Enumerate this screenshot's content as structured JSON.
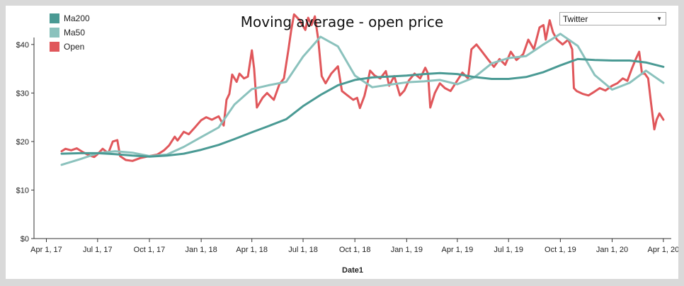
{
  "chart_data": {
    "type": "line",
    "title": "Moving average - open price",
    "xlabel": "Date1",
    "ylabel": "",
    "ylim": [
      0,
      48
    ],
    "xlim": [
      "2017-03-10",
      "2020-04-15"
    ],
    "grid": false,
    "legend_position": "top-left",
    "y_ticks": [
      "$0",
      "$10",
      "$20",
      "$30",
      "$40"
    ],
    "x_ticks": [
      "Apr 1, 17",
      "Jul 1, 17",
      "Oct 1, 17",
      "Jan 1, 18",
      "Apr 1, 18",
      "Jul 1, 18",
      "Oct 1, 18",
      "Jan 1, 19",
      "Apr 1, 19",
      "Jul 1, 19",
      "Oct 1, 19",
      "Jan 1, 20",
      "Apr 1, 20"
    ],
    "series": [
      {
        "name": "Ma200",
        "color": "#4a9a94",
        "points": [
          [
            "2017-04-28",
            17.5
          ],
          [
            "2017-06-01",
            17.6
          ],
          [
            "2017-07-01",
            17.6
          ],
          [
            "2017-08-01",
            17.4
          ],
          [
            "2017-09-01",
            17.1
          ],
          [
            "2017-10-01",
            16.9
          ],
          [
            "2017-11-01",
            17.1
          ],
          [
            "2017-12-01",
            17.5
          ],
          [
            "2018-01-01",
            18.3
          ],
          [
            "2018-02-01",
            19.3
          ],
          [
            "2018-03-01",
            20.5
          ],
          [
            "2018-04-01",
            21.9
          ],
          [
            "2018-05-01",
            23.2
          ],
          [
            "2018-06-01",
            24.6
          ],
          [
            "2018-07-01",
            27.3
          ],
          [
            "2018-08-01",
            29.6
          ],
          [
            "2018-09-01",
            31.6
          ],
          [
            "2018-10-01",
            32.7
          ],
          [
            "2018-11-01",
            33.2
          ],
          [
            "2018-12-01",
            33.4
          ],
          [
            "2019-01-01",
            33.6
          ],
          [
            "2019-02-01",
            33.9
          ],
          [
            "2019-03-01",
            34.1
          ],
          [
            "2019-04-01",
            33.9
          ],
          [
            "2019-05-01",
            33.3
          ],
          [
            "2019-06-01",
            32.9
          ],
          [
            "2019-07-01",
            32.9
          ],
          [
            "2019-08-01",
            33.3
          ],
          [
            "2019-09-01",
            34.3
          ],
          [
            "2019-10-01",
            35.7
          ],
          [
            "2019-11-01",
            37.0
          ],
          [
            "2019-12-01",
            36.8
          ],
          [
            "2020-01-01",
            36.7
          ],
          [
            "2020-02-01",
            36.7
          ],
          [
            "2020-03-01",
            36.3
          ],
          [
            "2020-04-01",
            35.4
          ]
        ]
      },
      {
        "name": "Ma50",
        "color": "#8bc2bd",
        "points": [
          [
            "2017-04-28",
            15.2
          ],
          [
            "2017-06-01",
            16.4
          ],
          [
            "2017-07-01",
            17.6
          ],
          [
            "2017-08-01",
            18.0
          ],
          [
            "2017-09-01",
            17.7
          ],
          [
            "2017-10-01",
            17.0
          ],
          [
            "2017-11-01",
            17.3
          ],
          [
            "2017-12-01",
            18.9
          ],
          [
            "2018-01-01",
            20.9
          ],
          [
            "2018-02-01",
            22.9
          ],
          [
            "2018-03-01",
            27.6
          ],
          [
            "2018-04-01",
            30.8
          ],
          [
            "2018-05-01",
            31.6
          ],
          [
            "2018-06-01",
            32.3
          ],
          [
            "2018-07-01",
            37.5
          ],
          [
            "2018-08-01",
            41.6
          ],
          [
            "2018-09-01",
            39.6
          ],
          [
            "2018-10-01",
            33.6
          ],
          [
            "2018-11-01",
            31.2
          ],
          [
            "2018-12-01",
            31.7
          ],
          [
            "2019-01-01",
            32.2
          ],
          [
            "2019-02-01",
            32.4
          ],
          [
            "2019-03-01",
            32.7
          ],
          [
            "2019-04-01",
            31.8
          ],
          [
            "2019-05-01",
            33.2
          ],
          [
            "2019-06-01",
            36.1
          ],
          [
            "2019-07-01",
            37.2
          ],
          [
            "2019-08-01",
            37.6
          ],
          [
            "2019-09-01",
            40.0
          ],
          [
            "2019-10-01",
            42.2
          ],
          [
            "2019-11-01",
            39.7
          ],
          [
            "2019-12-01",
            33.7
          ],
          [
            "2020-01-01",
            30.7
          ],
          [
            "2020-02-01",
            32.1
          ],
          [
            "2020-03-01",
            34.6
          ],
          [
            "2020-04-01",
            32.1
          ]
        ]
      },
      {
        "name": "Open",
        "color": "#e0575b",
        "points": [
          [
            "2017-04-28",
            18.0
          ],
          [
            "2017-05-05",
            18.5
          ],
          [
            "2017-05-15",
            18.2
          ],
          [
            "2017-05-25",
            18.6
          ],
          [
            "2017-06-05",
            17.8
          ],
          [
            "2017-06-15",
            17.2
          ],
          [
            "2017-06-25",
            16.8
          ],
          [
            "2017-07-01",
            17.4
          ],
          [
            "2017-07-10",
            18.5
          ],
          [
            "2017-07-20",
            17.6
          ],
          [
            "2017-07-28",
            20.0
          ],
          [
            "2017-08-05",
            20.3
          ],
          [
            "2017-08-10",
            17.0
          ],
          [
            "2017-08-20",
            16.2
          ],
          [
            "2017-09-01",
            16.0
          ],
          [
            "2017-09-15",
            16.6
          ],
          [
            "2017-10-01",
            17.0
          ],
          [
            "2017-10-15",
            17.3
          ],
          [
            "2017-10-27",
            18.2
          ],
          [
            "2017-11-05",
            19.2
          ],
          [
            "2017-11-15",
            21.0
          ],
          [
            "2017-11-20",
            20.2
          ],
          [
            "2017-12-01",
            22.0
          ],
          [
            "2017-12-10",
            21.5
          ],
          [
            "2017-12-20",
            22.8
          ],
          [
            "2018-01-01",
            24.4
          ],
          [
            "2018-01-10",
            25.0
          ],
          [
            "2018-01-20",
            24.5
          ],
          [
            "2018-02-01",
            25.2
          ],
          [
            "2018-02-10",
            23.3
          ],
          [
            "2018-02-15",
            28.6
          ],
          [
            "2018-02-20",
            29.8
          ],
          [
            "2018-02-25",
            33.8
          ],
          [
            "2018-03-05",
            32.3
          ],
          [
            "2018-03-10",
            34.0
          ],
          [
            "2018-03-18",
            33.0
          ],
          [
            "2018-03-25",
            33.4
          ],
          [
            "2018-04-01",
            38.8
          ],
          [
            "2018-04-05",
            35.0
          ],
          [
            "2018-04-10",
            27.0
          ],
          [
            "2018-04-20",
            29.0
          ],
          [
            "2018-04-28",
            30.0
          ],
          [
            "2018-05-10",
            28.6
          ],
          [
            "2018-05-20",
            31.8
          ],
          [
            "2018-05-28",
            33.0
          ],
          [
            "2018-06-05",
            39.0
          ],
          [
            "2018-06-10",
            43.0
          ],
          [
            "2018-06-15",
            46.2
          ],
          [
            "2018-06-25",
            45.0
          ],
          [
            "2018-07-05",
            43.0
          ],
          [
            "2018-07-10",
            45.5
          ],
          [
            "2018-07-16",
            44.0
          ],
          [
            "2018-07-22",
            45.8
          ],
          [
            "2018-07-28",
            41.0
          ],
          [
            "2018-08-03",
            33.5
          ],
          [
            "2018-08-10",
            32.0
          ],
          [
            "2018-08-20",
            34.0
          ],
          [
            "2018-09-01",
            35.5
          ],
          [
            "2018-09-08",
            30.4
          ],
          [
            "2018-09-18",
            29.5
          ],
          [
            "2018-09-28",
            28.6
          ],
          [
            "2018-10-05",
            29.0
          ],
          [
            "2018-10-10",
            26.9
          ],
          [
            "2018-10-18",
            29.4
          ],
          [
            "2018-10-24",
            32.4
          ],
          [
            "2018-10-28",
            34.6
          ],
          [
            "2018-11-05",
            33.6
          ],
          [
            "2018-11-15",
            33.0
          ],
          [
            "2018-11-25",
            34.5
          ],
          [
            "2018-12-01",
            31.5
          ],
          [
            "2018-12-10",
            33.5
          ],
          [
            "2018-12-20",
            29.5
          ],
          [
            "2018-12-28",
            30.5
          ],
          [
            "2019-01-05",
            32.6
          ],
          [
            "2019-01-15",
            34.0
          ],
          [
            "2019-01-25",
            33.0
          ],
          [
            "2019-02-03",
            35.2
          ],
          [
            "2019-02-08",
            34.0
          ],
          [
            "2019-02-12",
            27.0
          ],
          [
            "2019-02-20",
            30.0
          ],
          [
            "2019-03-01",
            32.0
          ],
          [
            "2019-03-10",
            31.0
          ],
          [
            "2019-03-20",
            30.4
          ],
          [
            "2019-04-01",
            32.6
          ],
          [
            "2019-04-10",
            34.2
          ],
          [
            "2019-04-20",
            33.0
          ],
          [
            "2019-04-26",
            39.0
          ],
          [
            "2019-05-05",
            40.0
          ],
          [
            "2019-05-15",
            38.5
          ],
          [
            "2019-05-25",
            37.0
          ],
          [
            "2019-06-05",
            35.4
          ],
          [
            "2019-06-15",
            37.0
          ],
          [
            "2019-06-25",
            35.8
          ],
          [
            "2019-07-05",
            38.5
          ],
          [
            "2019-07-15",
            36.8
          ],
          [
            "2019-07-27",
            38.0
          ],
          [
            "2019-08-05",
            41.0
          ],
          [
            "2019-08-15",
            39.0
          ],
          [
            "2019-08-25",
            43.5
          ],
          [
            "2019-09-01",
            44.0
          ],
          [
            "2019-09-05",
            41.0
          ],
          [
            "2019-09-12",
            45.0
          ],
          [
            "2019-09-18",
            42.5
          ],
          [
            "2019-09-25",
            41.0
          ],
          [
            "2019-10-05",
            40.0
          ],
          [
            "2019-10-15",
            41.0
          ],
          [
            "2019-10-22",
            39.0
          ],
          [
            "2019-10-25",
            31.0
          ],
          [
            "2019-10-30",
            30.4
          ],
          [
            "2019-11-10",
            29.8
          ],
          [
            "2019-11-20",
            29.5
          ],
          [
            "2019-12-01",
            30.3
          ],
          [
            "2019-12-10",
            31.0
          ],
          [
            "2019-12-20",
            30.5
          ],
          [
            "2020-01-01",
            31.5
          ],
          [
            "2020-01-10",
            32.0
          ],
          [
            "2020-01-20",
            33.0
          ],
          [
            "2020-01-28",
            32.5
          ],
          [
            "2020-02-05",
            35.0
          ],
          [
            "2020-02-12",
            37.0
          ],
          [
            "2020-02-18",
            38.5
          ],
          [
            "2020-02-23",
            34.0
          ],
          [
            "2020-02-28",
            34.0
          ],
          [
            "2020-03-05",
            33.0
          ],
          [
            "2020-03-10",
            28.0
          ],
          [
            "2020-03-16",
            22.5
          ],
          [
            "2020-03-20",
            24.5
          ],
          [
            "2020-03-25",
            25.8
          ],
          [
            "2020-04-01",
            24.5
          ]
        ]
      }
    ]
  },
  "dropdown": {
    "selected": "Twitter"
  }
}
